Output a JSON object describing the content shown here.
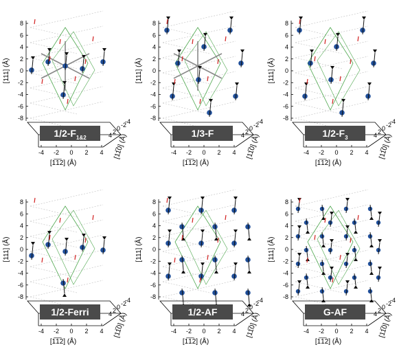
{
  "axes": {
    "vertical_label": "[111] (Å)",
    "x_label": "[1̅1̅2] (Å)",
    "depth_label": "[11̅0] (Å)",
    "vertical_ticks": [
      "8",
      "6",
      "4",
      "2",
      "0",
      "-2",
      "-4",
      "-6",
      "-8"
    ],
    "x_ticks": [
      "-4",
      "-2",
      "0",
      "2",
      "4"
    ],
    "depth_ticks": [
      "4",
      "2",
      "0",
      "-2",
      "-4"
    ]
  },
  "panels": [
    {
      "label_main": "1/2-F",
      "label_sub": "1&2",
      "pattern": "ferro-2layer"
    },
    {
      "label_main": "1/3-F",
      "label_sub": "",
      "pattern": "ferro-3layer"
    },
    {
      "label_main": "1/2-F",
      "label_sub": "3",
      "pattern": "ferro-3-alt"
    },
    {
      "label_main": "1/2-Ferri",
      "label_sub": "",
      "pattern": "ferri"
    },
    {
      "label_main": "1/2-AF",
      "label_sub": "",
      "pattern": "af"
    },
    {
      "label_main": "G-AF",
      "label_sub": "",
      "pattern": "g-af"
    }
  ],
  "colors": {
    "atom": "#1f4e99",
    "moment_arrow": "#111111",
    "small_moment": "#d22020",
    "cell_edge": "#4ca64c",
    "grid_line": "#bdbdbd",
    "badge_fill": "#4a4a4a",
    "badge_text": "#ffffff",
    "bond": "#888888"
  }
}
